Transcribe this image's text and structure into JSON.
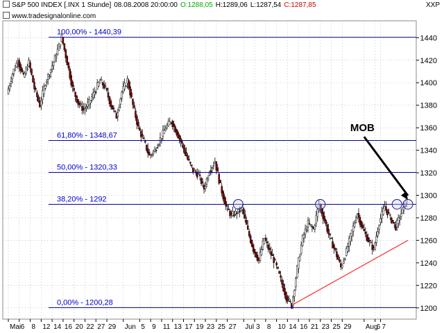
{
  "header": {
    "symbol": "S&P 500 INDEX [.INX  1 Stunde]",
    "datetime": "08.08.2008 20:00:00",
    "open": "O:1288,05",
    "high": "H:1289,06",
    "low": "L:1287,54",
    "close": "C:1287,85",
    "source": "www.tradesignalonline.com",
    "right_label": "XXP",
    "colors": {
      "open": "#00aa00",
      "close": "#cc0000",
      "text": "#000000"
    }
  },
  "chart_data": {
    "type": "candlestick",
    "ylim": [
      1190,
      1455
    ],
    "y_ticks": [
      1200,
      1220,
      1240,
      1260,
      1280,
      1300,
      1320,
      1340,
      1360,
      1380,
      1400,
      1420,
      1440
    ],
    "x_tick_labels": [
      "Mai",
      "6",
      "8",
      "12",
      "14",
      "16",
      "20",
      "22",
      "27",
      "29",
      "Jun",
      "5",
      "9",
      "11",
      "13",
      "17",
      "19",
      "23",
      "25",
      "27",
      "Jul",
      "3",
      "8",
      "10",
      "14",
      "16",
      "21",
      "23",
      "25",
      "29",
      "Aug",
      "6",
      "7"
    ],
    "x_tick_order": [
      0,
      2,
      4,
      6,
      8,
      10,
      12,
      14,
      16,
      18,
      21,
      24,
      26,
      28,
      30,
      32,
      34,
      36,
      38,
      40,
      43,
      45,
      47,
      49,
      51,
      53,
      55,
      57,
      59,
      61,
      65,
      67,
      68
    ],
    "fib_levels": [
      {
        "label": "100,00% - 1440,39",
        "value": 1440.39
      },
      {
        "label": "61,80% - 1348,67",
        "value": 1348.67
      },
      {
        "label": "50,00% - 1320,33",
        "value": 1320.33
      },
      {
        "label": "38,20% - 1292",
        "value": 1292
      },
      {
        "label": "0,00% - 1200,28",
        "value": 1200.28
      }
    ],
    "price_path": [
      [
        0,
        1390
      ],
      [
        1,
        1408
      ],
      [
        2,
        1420
      ],
      [
        3,
        1405
      ],
      [
        4,
        1418
      ],
      [
        5,
        1395
      ],
      [
        6,
        1380
      ],
      [
        7,
        1400
      ],
      [
        8,
        1412
      ],
      [
        9,
        1425
      ],
      [
        10,
        1440.39
      ],
      [
        11,
        1418
      ],
      [
        12,
        1395
      ],
      [
        13,
        1382
      ],
      [
        14,
        1376
      ],
      [
        15,
        1382
      ],
      [
        16,
        1392
      ],
      [
        17,
        1402
      ],
      [
        18,
        1395
      ],
      [
        19,
        1380
      ],
      [
        20,
        1370
      ],
      [
        21,
        1392
      ],
      [
        22,
        1402
      ],
      [
        23,
        1380
      ],
      [
        24,
        1360
      ],
      [
        25,
        1348
      ],
      [
        26,
        1335
      ],
      [
        27,
        1340
      ],
      [
        28,
        1350
      ],
      [
        29,
        1360
      ],
      [
        30,
        1366
      ],
      [
        31,
        1356
      ],
      [
        32,
        1345
      ],
      [
        33,
        1332
      ],
      [
        34,
        1322
      ],
      [
        35,
        1318
      ],
      [
        36,
        1306
      ],
      [
        37,
        1322
      ],
      [
        38,
        1330
      ],
      [
        39,
        1308
      ],
      [
        40,
        1290
      ],
      [
        41,
        1282
      ],
      [
        42,
        1285
      ],
      [
        43,
        1288
      ],
      [
        44,
        1268
      ],
      [
        45,
        1252
      ],
      [
        46,
        1242
      ],
      [
        47,
        1262
      ],
      [
        48,
        1250
      ],
      [
        49,
        1240
      ],
      [
        50,
        1225
      ],
      [
        51,
        1210
      ],
      [
        52,
        1202
      ],
      [
        53,
        1235
      ],
      [
        54,
        1262
      ],
      [
        55,
        1275
      ],
      [
        56,
        1270
      ],
      [
        57,
        1292
      ],
      [
        58,
        1278
      ],
      [
        59,
        1262
      ],
      [
        60,
        1250
      ],
      [
        61,
        1236
      ],
      [
        62,
        1250
      ],
      [
        63,
        1268
      ],
      [
        64,
        1284
      ],
      [
        65,
        1270
      ],
      [
        66,
        1260
      ],
      [
        67,
        1252
      ],
      [
        68,
        1276
      ],
      [
        69,
        1290
      ],
      [
        70,
        1280
      ],
      [
        71,
        1272
      ],
      [
        72,
        1284
      ],
      [
        73,
        1296
      ]
    ],
    "trendline": {
      "from": [
        52,
        1203
      ],
      "to": [
        73,
        1260
      ],
      "color": "#ff0000"
    },
    "circles": [
      {
        "x": 42,
        "y": 1292
      },
      {
        "x": 57,
        "y": 1292
      },
      {
        "x": 71,
        "y": 1292
      },
      {
        "x": 73,
        "y": 1292
      }
    ],
    "annotation": {
      "text": "MOB",
      "arrow_from": [
        65,
        1352
      ],
      "arrow_to": [
        73,
        1296
      ]
    },
    "colors": {
      "up": "#ffffff",
      "down": "#8b0000",
      "wick": "#000000",
      "fib": "#00008b",
      "grid": "#aaaaaa",
      "fib_label": "#0000cd"
    },
    "grid": true
  }
}
